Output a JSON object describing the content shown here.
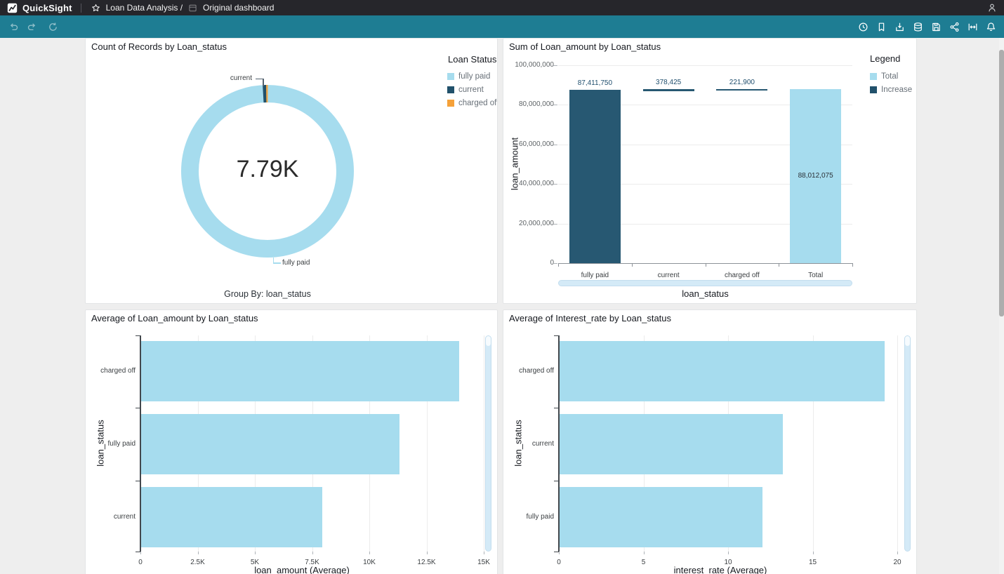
{
  "theme": {
    "topbar_bg": "#26262b",
    "toolbar_bg": "#1e7d93",
    "canvas_bg": "#eeeeee",
    "series_light_blue": "#a6dcee",
    "series_dark_blue": "#275872",
    "series_orange": "#f5a139",
    "value_label_color": "#1f4e6d"
  },
  "topbar": {
    "brand": "QuickSight",
    "analysis_name": "Loan Data Analysis /",
    "dashboard_name": "Original dashboard"
  },
  "toolbar": {
    "left_icons": [
      "undo",
      "redo",
      "reset"
    ],
    "right_icons": [
      "schedule",
      "bookmark",
      "export",
      "dataset",
      "save",
      "share",
      "fit-width",
      "notifications"
    ]
  },
  "chart_data": [
    {
      "type": "pie",
      "subtype": "donut",
      "title": "Count of Records by Loan_status",
      "center_total": "7.79K",
      "categories": [
        "fully paid",
        "current",
        "charged off"
      ],
      "values": [
        7713,
        55,
        22
      ],
      "colors": [
        "#a6dcee",
        "#21516b",
        "#f5a139"
      ],
      "legend_title": "Loan Status",
      "callouts": {
        "top": "current",
        "bottom": "fully paid"
      },
      "footer": "Group By: loan_status"
    },
    {
      "type": "bar",
      "subtype": "waterfall",
      "title": "Sum of Loan_amount by Loan_status",
      "categories": [
        "fully paid",
        "current",
        "charged off",
        "Total"
      ],
      "values": [
        87411750,
        378425,
        221900,
        88012075
      ],
      "value_labels": [
        "87,411,750",
        "378,425",
        "221,900",
        "88,012,075"
      ],
      "roles": [
        "increase",
        "increase",
        "increase",
        "total"
      ],
      "xlabel": "loan_status",
      "ylabel": "loan_amount",
      "ylim": [
        0,
        100000000
      ],
      "ytick_values": [
        0,
        20000000,
        40000000,
        60000000,
        80000000,
        100000000
      ],
      "ytick_labels": [
        "0",
        "20,000,000",
        "40,000,000",
        "60,000,000",
        "80,000,000",
        "100,000,000"
      ],
      "legend_title": "Legend",
      "legend": [
        {
          "label": "Total",
          "color": "#a6dcee"
        },
        {
          "label": "Increase",
          "color": "#21516b"
        }
      ],
      "bar_colors": {
        "increase": "#275872",
        "total": "#a6dcee"
      }
    },
    {
      "type": "bar",
      "orientation": "horizontal",
      "title": "Average of Loan_amount by Loan_status",
      "categories": [
        "charged off",
        "fully paid",
        "current"
      ],
      "values": [
        13900,
        11300,
        7900
      ],
      "xlabel": "loan_amount (Average)",
      "ylabel": "loan_status",
      "xlim": [
        0,
        15500
      ],
      "xtick_values": [
        0,
        2500,
        5000,
        7500,
        10000,
        12500,
        15000
      ],
      "xtick_labels": [
        "0",
        "2.5K",
        "5K",
        "7.5K",
        "10K",
        "12.5K",
        "15K"
      ],
      "bar_color": "#a6dcee",
      "grid": true
    },
    {
      "type": "bar",
      "orientation": "horizontal",
      "title": "Average of Interest_rate by Loan_status",
      "categories": [
        "charged off",
        "current",
        "fully paid"
      ],
      "values": [
        19.2,
        13.2,
        12.0
      ],
      "xlabel": "interest_rate (Average)",
      "ylabel": "loan_status",
      "xlim": [
        0,
        20.6
      ],
      "xtick_values": [
        0,
        5,
        10,
        15,
        20
      ],
      "xtick_labels": [
        "0",
        "5",
        "10",
        "15",
        "20"
      ],
      "bar_color": "#a6dcee",
      "grid": true
    }
  ]
}
